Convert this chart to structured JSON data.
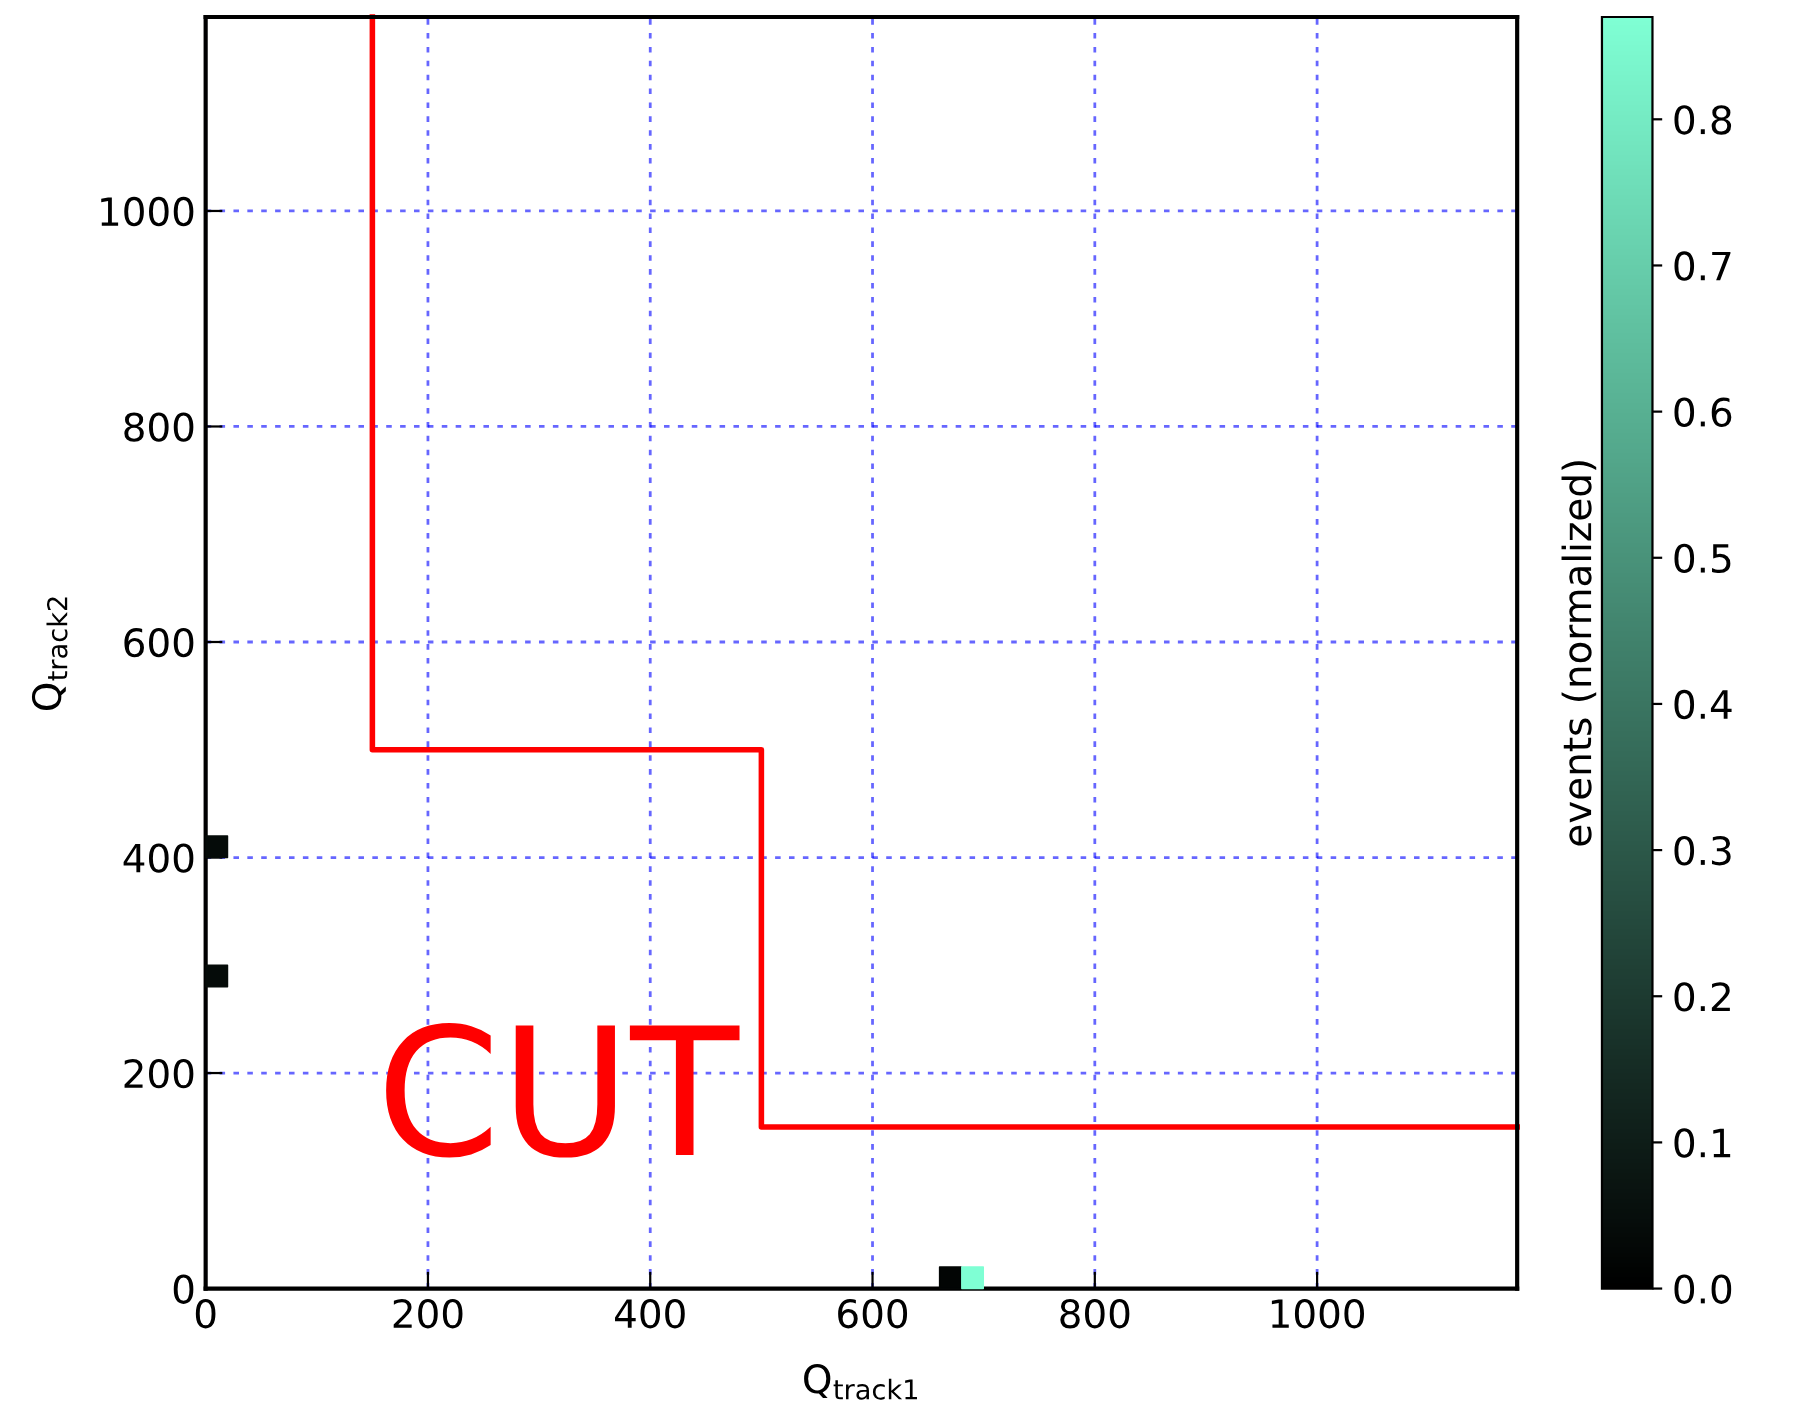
{
  "chart_data": {
    "type": "scatter",
    "xlabel": "Q$_{track1}$",
    "ylabel": "Q$_{track2}$",
    "clabel": "events (normalized)",
    "xlim": [
      0,
      1180
    ],
    "ylim": [
      0,
      1180
    ],
    "xticks": [
      0,
      200,
      400,
      600,
      800,
      1000
    ],
    "yticks": [
      0,
      200,
      400,
      600,
      800,
      1000
    ],
    "clim": [
      0,
      0.87
    ],
    "cticks": [
      {
        "value": 0,
        "label": "0.0"
      },
      {
        "value": 0.1,
        "label": "0.1"
      },
      {
        "value": 0.2,
        "label": "0.2"
      },
      {
        "value": 0.3,
        "label": "0.3"
      },
      {
        "value": 0.4,
        "label": "0.4"
      },
      {
        "value": 0.5,
        "label": "0.5"
      },
      {
        "value": 0.6,
        "label": "0.6"
      },
      {
        "value": 0.7,
        "label": "0.7"
      },
      {
        "value": 0.8,
        "label": "0.8"
      }
    ],
    "grid": true,
    "series": [
      {
        "marker": "square",
        "x": [
          10,
          10,
          670,
          690
        ],
        "values": [
          410,
          290,
          10,
          10
        ],
        "cvalues": [
          0.04,
          0.04,
          0.02,
          0.87
        ],
        "colors": [
          "#060c0a",
          "#060c0a",
          "#030605",
          "#7fffd4"
        ]
      },
      {
        "type": "line",
        "color": "#ff0000",
        "x": [
          150,
          150,
          500,
          500,
          1180
        ],
        "values": [
          1180,
          500,
          500,
          150,
          150
        ]
      }
    ],
    "annotations": [
      "CUT"
    ]
  }
}
